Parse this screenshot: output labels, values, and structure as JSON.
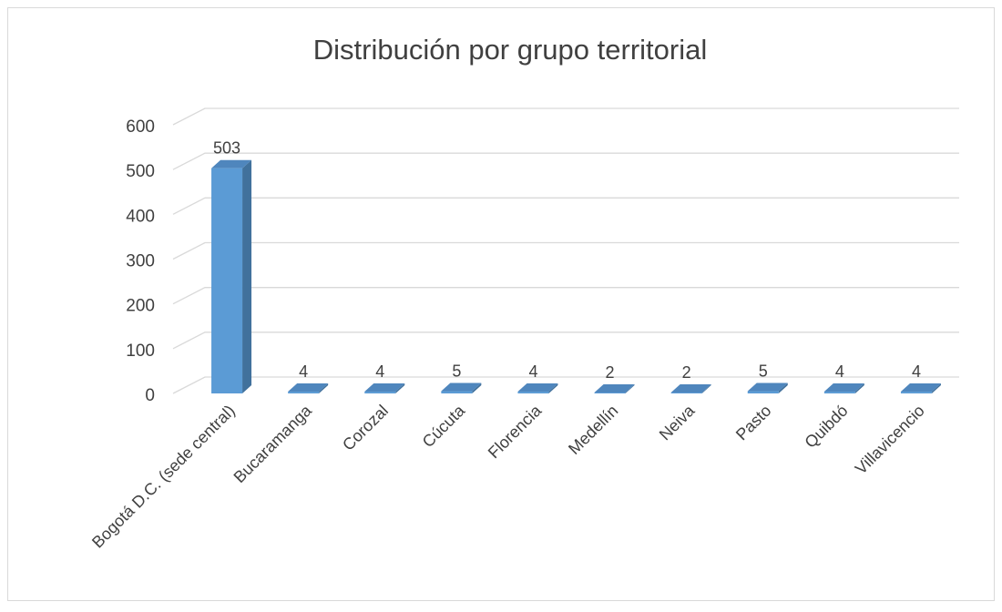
{
  "chart_data": {
    "type": "bar3d",
    "title": "Distribución por grupo territorial",
    "categories": [
      "Bogotá D.C. (sede central)",
      "Bucaramanga",
      "Corozal",
      "Cúcuta",
      "Florencia",
      "Medellín",
      "Neiva",
      "Pasto",
      "Quibdó",
      "Villavicencio"
    ],
    "values": [
      503,
      4,
      4,
      5,
      4,
      2,
      2,
      5,
      4,
      4
    ],
    "color": "#5b9bd5",
    "ylim": [
      0,
      600
    ],
    "yticks": [
      0,
      100,
      200,
      300,
      400,
      500,
      600
    ],
    "grid": true
  }
}
